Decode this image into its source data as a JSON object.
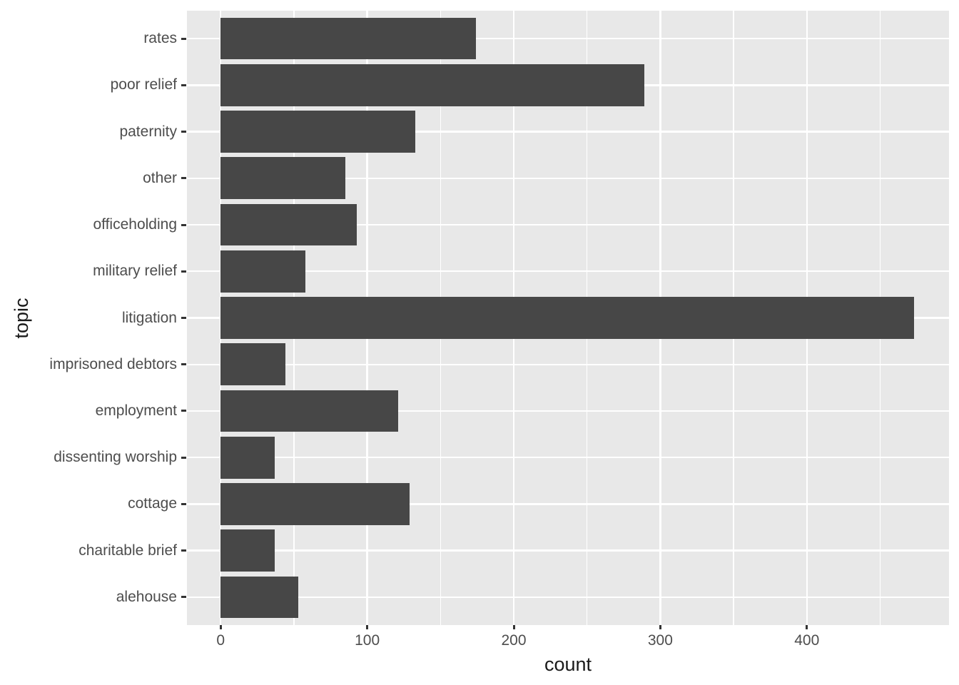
{
  "chart_data": {
    "type": "bar",
    "orientation": "horizontal",
    "title": "",
    "xlabel": "count",
    "ylabel": "topic",
    "categories_top_to_bottom": [
      "rates",
      "poor relief",
      "paternity",
      "other",
      "officeholding",
      "military relief",
      "litigation",
      "imprisoned debtors",
      "employment",
      "dissenting worship",
      "cottage",
      "charitable brief",
      "alehouse"
    ],
    "values": [
      174,
      289,
      133,
      85,
      93,
      58,
      473,
      44,
      121,
      37,
      129,
      37,
      53
    ],
    "x_ticks": [
      0,
      100,
      200,
      300,
      400
    ],
    "x_tick_labels": [
      "0",
      "100",
      "200",
      "300",
      "400"
    ],
    "x_minor_gridlines": [
      50,
      150,
      250,
      350,
      450
    ],
    "xlim": [
      -23,
      497
    ],
    "grid": true,
    "legend": false,
    "colors": {
      "bar_fill": "#474747",
      "panel_background": "#E8E8E8",
      "gridline": "#FFFFFF",
      "axis_text": "#4D4D4D",
      "axis_title": "#1A1A1A",
      "tick_mark": "#333333",
      "background": "#FFFFFF"
    }
  }
}
